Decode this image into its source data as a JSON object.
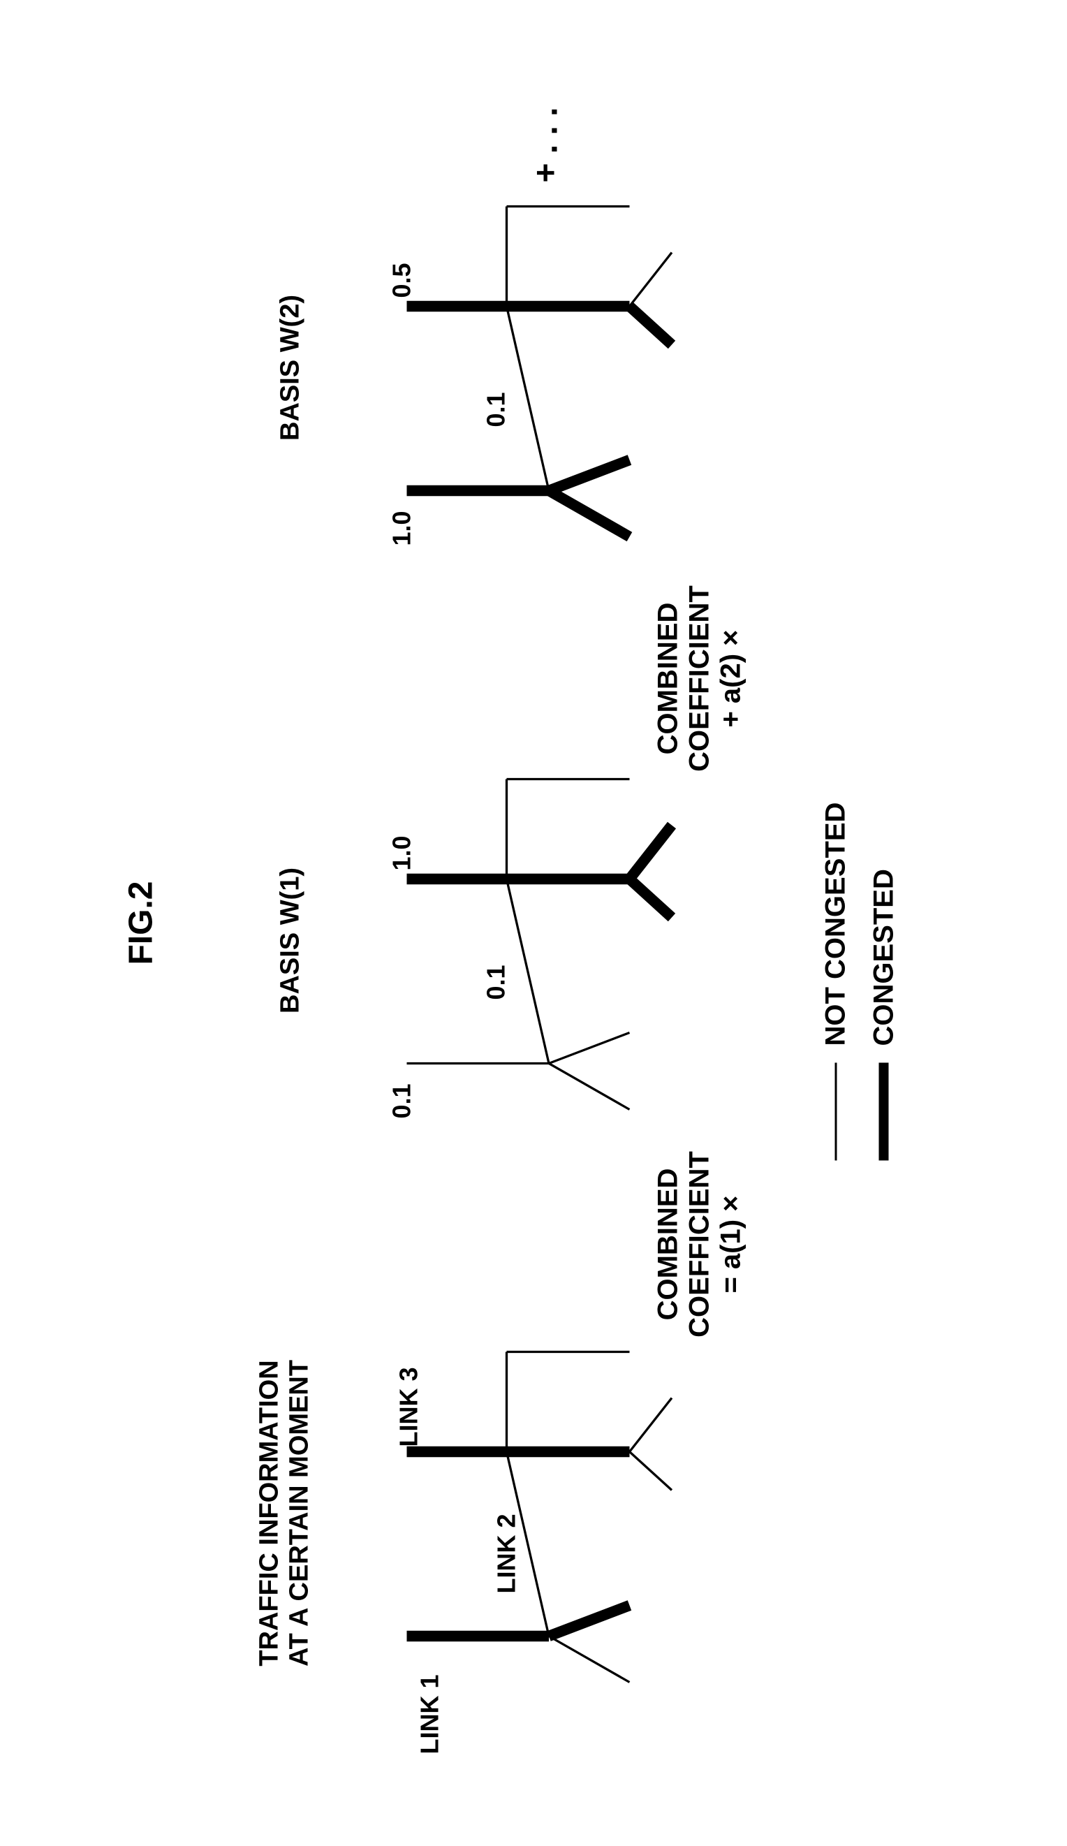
{
  "figure_title": "FIG.2",
  "legend": {
    "thin_label": "NOT CONGESTED",
    "thick_label": "CONGESTED"
  },
  "stroke_color": "#000000",
  "thin_width": 3,
  "thick_width": 14,
  "panels": [
    {
      "title": "TRAFFIC INFORMATION\nAT A CERTAIN MOMENT",
      "labels": {
        "upper_left": "LINK 1",
        "upper_right": "LINK 3",
        "diag": "LINK 2"
      },
      "segments": {
        "upper_left": "thick",
        "upper_right_top": "thick",
        "upper_right_bottom": "thick",
        "diag": "thin",
        "lower_left_top": "thin",
        "lower_left_fork": "thick",
        "lower_right_top": "thin",
        "lower_right_fork": "thin",
        "right_extend": "thin"
      }
    },
    {
      "title": "BASIS W(1)",
      "labels": {
        "upper_left": "0.1",
        "upper_right": "1.0",
        "diag": "0.1"
      },
      "segments": {
        "upper_left": "thin",
        "upper_right_top": "thick",
        "upper_right_bottom": "thick",
        "diag": "thin",
        "lower_left_top": "thin",
        "lower_left_fork": "thin",
        "lower_right_top": "thick",
        "lower_right_fork": "thick",
        "right_extend": "thin"
      }
    },
    {
      "title": "BASIS W(2)",
      "labels": {
        "upper_left": "1.0",
        "upper_right": "0.5",
        "diag": "0.1"
      },
      "segments": {
        "upper_left": "thick",
        "upper_right_top": "thick",
        "upper_right_bottom": "thick",
        "diag": "thin",
        "lower_left_top": "thick",
        "lower_left_fork": "thick",
        "lower_right_top": "thick",
        "lower_right_fork": "thin",
        "right_extend": "thin"
      }
    }
  ],
  "operators": [
    {
      "text": "COMBINED COEFFICIENT\n= a(1) ×"
    },
    {
      "text": "COMBINED COEFFICIENT\n+ a(2) ×"
    }
  ],
  "ellipsis": "+ . . .",
  "road_nodes": {
    "A": [
      90,
      40
    ],
    "B": [
      90,
      225
    ],
    "C": [
      30,
      330
    ],
    "D": [
      130,
      330
    ],
    "E": [
      330,
      170
    ],
    "F": [
      330,
      40
    ],
    "G": [
      330,
      330
    ],
    "H": [
      280,
      385
    ],
    "I": [
      400,
      385
    ],
    "J": [
      460,
      170
    ],
    "K": [
      460,
      330
    ]
  }
}
